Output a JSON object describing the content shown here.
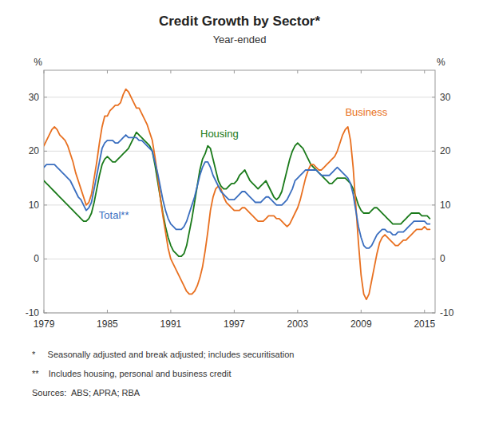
{
  "chart_data": {
    "type": "line",
    "title": "Credit Growth by Sector*",
    "subtitle": "Year-ended",
    "y_label": "%",
    "y2_label": "%",
    "xlim": [
      1979,
      2016
    ],
    "ylim": [
      -10,
      35
    ],
    "y2lim": [
      -10,
      35
    ],
    "xticks": [
      1979,
      1985,
      1991,
      1997,
      2003,
      2009,
      2015
    ],
    "yticks": [
      -10,
      0,
      10,
      20,
      30
    ],
    "y2ticks": [
      -10,
      0,
      10,
      20,
      30
    ],
    "grid": true,
    "annotations": [
      {
        "text": "Housing",
        "x": 1993.8,
        "y": 22.5,
        "color": "#1a7a1a"
      },
      {
        "text": "Business",
        "x": 2007.5,
        "y": 26.5,
        "color": "#e87020"
      },
      {
        "text": "Total**",
        "x": 1984.2,
        "y": 7.5,
        "color": "#3a6ebf"
      }
    ],
    "footnotes": [
      "*     Seasonally adjusted and break adjusted; includes securitisation",
      "**    Includes housing, personal and business credit",
      "Sources:  ABS; APRA; RBA"
    ],
    "x": [
      1979.0,
      1979.25,
      1979.5,
      1979.75,
      1980.0,
      1980.25,
      1980.5,
      1980.75,
      1981.0,
      1981.25,
      1981.5,
      1981.75,
      1982.0,
      1982.25,
      1982.5,
      1982.75,
      1983.0,
      1983.25,
      1983.5,
      1983.75,
      1984.0,
      1984.25,
      1984.5,
      1984.75,
      1985.0,
      1985.25,
      1985.5,
      1985.75,
      1986.0,
      1986.25,
      1986.5,
      1986.75,
      1987.0,
      1987.25,
      1987.5,
      1987.75,
      1988.0,
      1988.25,
      1988.5,
      1988.75,
      1989.0,
      1989.25,
      1989.5,
      1989.75,
      1990.0,
      1990.25,
      1990.5,
      1990.75,
      1991.0,
      1991.25,
      1991.5,
      1991.75,
      1992.0,
      1992.25,
      1992.5,
      1992.75,
      1993.0,
      1993.25,
      1993.5,
      1993.75,
      1994.0,
      1994.25,
      1994.5,
      1994.75,
      1995.0,
      1995.25,
      1995.5,
      1995.75,
      1996.0,
      1996.25,
      1996.5,
      1996.75,
      1997.0,
      1997.25,
      1997.5,
      1997.75,
      1998.0,
      1998.25,
      1998.5,
      1998.75,
      1999.0,
      1999.25,
      1999.5,
      1999.75,
      2000.0,
      2000.25,
      2000.5,
      2000.75,
      2001.0,
      2001.25,
      2001.5,
      2001.75,
      2002.0,
      2002.25,
      2002.5,
      2002.75,
      2003.0,
      2003.25,
      2003.5,
      2003.75,
      2004.0,
      2004.25,
      2004.5,
      2004.75,
      2005.0,
      2005.25,
      2005.5,
      2005.75,
      2006.0,
      2006.25,
      2006.5,
      2006.75,
      2007.0,
      2007.25,
      2007.5,
      2007.75,
      2008.0,
      2008.25,
      2008.5,
      2008.75,
      2009.0,
      2009.25,
      2009.5,
      2009.75,
      2010.0,
      2010.25,
      2010.5,
      2010.75,
      2011.0,
      2011.25,
      2011.5,
      2011.75,
      2012.0,
      2012.25,
      2012.5,
      2012.75,
      2013.0,
      2013.25,
      2013.5,
      2013.75,
      2014.0,
      2014.25,
      2014.5,
      2014.75,
      2015.0,
      2015.25,
      2015.5
    ],
    "series": [
      {
        "color": "#1a7a1a",
        "values": [
          14.5,
          14.0,
          13.5,
          13.0,
          12.5,
          12.0,
          11.5,
          11.0,
          10.5,
          10.0,
          9.5,
          9.0,
          8.5,
          8.0,
          7.5,
          7.0,
          7.0,
          7.5,
          8.5,
          10.5,
          13.0,
          15.5,
          17.5,
          18.5,
          19.0,
          18.5,
          18.0,
          18.0,
          18.5,
          19.0,
          19.5,
          20.0,
          20.5,
          21.5,
          22.5,
          23.5,
          23.0,
          22.5,
          22.0,
          21.5,
          21.0,
          20.0,
          17.5,
          14.5,
          11.5,
          8.5,
          6.0,
          4.0,
          2.5,
          1.5,
          1.0,
          0.5,
          0.5,
          1.0,
          2.5,
          5.0,
          7.5,
          10.5,
          13.5,
          16.5,
          18.5,
          19.5,
          21.0,
          20.5,
          18.5,
          16.5,
          14.5,
          13.5,
          13.0,
          13.0,
          13.5,
          14.0,
          14.0,
          14.5,
          15.5,
          16.0,
          16.5,
          15.5,
          14.5,
          14.0,
          13.5,
          13.0,
          13.5,
          14.0,
          14.5,
          13.5,
          12.5,
          11.5,
          11.0,
          11.5,
          12.5,
          14.5,
          16.5,
          18.5,
          20.0,
          21.0,
          21.5,
          21.0,
          20.5,
          19.5,
          18.5,
          17.5,
          17.0,
          16.5,
          16.0,
          15.5,
          15.0,
          14.5,
          14.0,
          14.0,
          14.5,
          15.0,
          15.0,
          15.0,
          15.0,
          14.5,
          14.0,
          13.0,
          11.5,
          10.0,
          9.0,
          8.5,
          8.5,
          8.5,
          9.0,
          9.5,
          9.5,
          9.0,
          8.5,
          8.0,
          7.5,
          7.0,
          6.5,
          6.5,
          6.5,
          6.5,
          7.0,
          7.5,
          8.0,
          8.5,
          8.5,
          8.5,
          8.5,
          8.0,
          8.0,
          8.0,
          7.5
        ]
      },
      {
        "color": "#e87020",
        "values": [
          21.0,
          22.0,
          23.0,
          24.0,
          24.5,
          24.0,
          23.0,
          22.5,
          22.0,
          21.0,
          19.5,
          18.0,
          16.0,
          14.5,
          13.0,
          11.5,
          10.0,
          10.5,
          12.0,
          15.0,
          18.0,
          21.5,
          24.5,
          26.5,
          26.5,
          27.5,
          28.0,
          28.5,
          28.5,
          29.0,
          30.5,
          31.5,
          31.0,
          30.0,
          29.0,
          28.0,
          28.0,
          27.0,
          26.0,
          25.0,
          23.5,
          22.0,
          19.0,
          15.5,
          11.5,
          8.0,
          5.0,
          2.0,
          0.0,
          -1.0,
          -2.0,
          -3.0,
          -4.0,
          -5.0,
          -6.0,
          -6.5,
          -6.5,
          -6.0,
          -5.0,
          -3.5,
          -1.5,
          1.5,
          5.0,
          9.0,
          11.5,
          13.0,
          13.5,
          13.0,
          11.5,
          10.5,
          10.0,
          9.5,
          9.0,
          9.0,
          9.0,
          9.5,
          9.5,
          9.0,
          8.5,
          8.0,
          7.5,
          7.0,
          7.0,
          7.0,
          7.5,
          8.0,
          8.0,
          8.0,
          7.5,
          7.5,
          7.0,
          6.5,
          6.0,
          6.5,
          7.5,
          8.5,
          9.5,
          11.0,
          13.0,
          15.0,
          16.5,
          17.5,
          17.5,
          17.0,
          16.5,
          16.5,
          17.0,
          17.5,
          18.0,
          18.5,
          19.0,
          20.0,
          21.5,
          23.0,
          24.0,
          24.5,
          22.0,
          17.0,
          10.0,
          3.0,
          -3.0,
          -6.5,
          -7.5,
          -6.5,
          -4.0,
          -1.5,
          1.0,
          3.0,
          4.0,
          4.5,
          4.0,
          3.5,
          3.0,
          2.5,
          2.5,
          3.0,
          3.5,
          3.5,
          4.0,
          4.5,
          5.0,
          5.5,
          5.5,
          5.5,
          6.0,
          5.5,
          5.5
        ]
      },
      {
        "color": "#3a6ebf",
        "values": [
          17.0,
          17.5,
          17.5,
          17.5,
          17.5,
          17.0,
          16.5,
          16.0,
          15.5,
          15.0,
          14.5,
          13.5,
          12.5,
          11.5,
          11.0,
          10.0,
          9.0,
          9.5,
          10.5,
          13.0,
          15.5,
          18.0,
          20.5,
          21.5,
          22.0,
          22.0,
          22.0,
          21.5,
          21.5,
          22.0,
          22.5,
          23.0,
          22.5,
          22.5,
          22.5,
          22.5,
          22.0,
          22.0,
          21.5,
          21.0,
          20.5,
          20.0,
          18.0,
          16.0,
          13.5,
          11.0,
          9.0,
          7.5,
          6.5,
          6.0,
          5.5,
          5.5,
          5.5,
          6.0,
          7.0,
          8.5,
          10.0,
          11.5,
          13.5,
          15.5,
          17.0,
          18.0,
          18.0,
          17.0,
          15.5,
          14.5,
          13.5,
          12.5,
          12.0,
          11.5,
          11.0,
          11.0,
          11.0,
          11.5,
          12.0,
          12.5,
          12.5,
          12.0,
          11.5,
          11.0,
          10.5,
          10.5,
          10.5,
          11.0,
          11.5,
          11.5,
          11.0,
          10.5,
          10.0,
          10.0,
          10.0,
          10.5,
          11.0,
          12.0,
          13.0,
          14.5,
          15.0,
          15.5,
          16.0,
          16.5,
          16.5,
          16.5,
          16.5,
          16.5,
          16.0,
          15.5,
          15.5,
          15.5,
          15.5,
          16.0,
          16.5,
          17.0,
          16.5,
          16.0,
          15.5,
          15.0,
          14.0,
          12.0,
          9.0,
          6.0,
          4.0,
          2.5,
          2.0,
          2.0,
          2.5,
          3.5,
          4.5,
          5.0,
          5.5,
          5.5,
          5.0,
          5.0,
          4.5,
          4.5,
          5.0,
          5.0,
          5.0,
          5.5,
          6.0,
          6.5,
          7.0,
          7.0,
          7.0,
          7.0,
          7.0,
          6.5,
          6.5
        ]
      }
    ]
  }
}
